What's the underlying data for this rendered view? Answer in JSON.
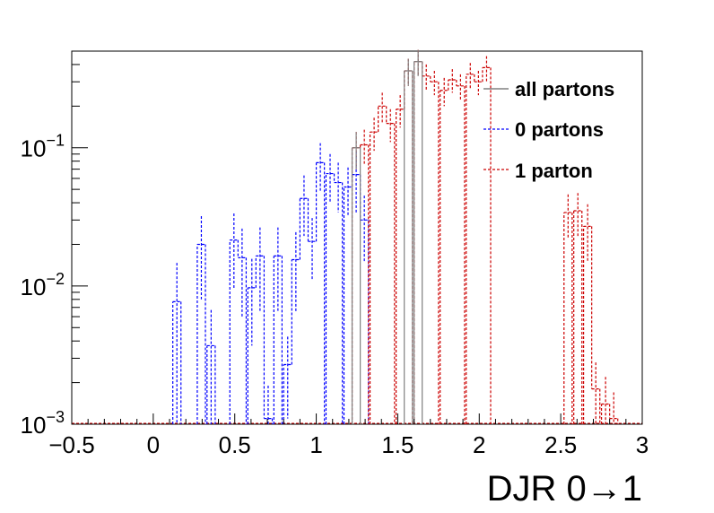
{
  "chart_data": {
    "type": "line",
    "subtype": "step-histogram",
    "xlabel": "DJR 0→1",
    "ylabel": "",
    "xlim": [
      -0.5,
      3.0
    ],
    "ylim": [
      0.001,
      0.5
    ],
    "yscale": "log",
    "x_ticks": [
      -0.5,
      0,
      0.5,
      1,
      1.5,
      2,
      2.5,
      3
    ],
    "x_tick_labels": [
      "−0.5",
      "0",
      "0.5",
      "1",
      "1.5",
      "2",
      "2.5",
      "3"
    ],
    "y_ticks": [
      0.001,
      0.01,
      0.1
    ],
    "y_tick_labels": [
      {
        "base": "10",
        "exp": "−3"
      },
      {
        "base": "10",
        "exp": "−2"
      },
      {
        "base": "10",
        "exp": "−1"
      }
    ],
    "bin_width": 0.05,
    "legend": {
      "placement": "top-right"
    },
    "grid": false,
    "series": [
      {
        "name": "0 partons",
        "color": "#0000ff",
        "dash": true,
        "bins": [
          {
            "x0": 0.12,
            "y": 0.0077,
            "err": 0.007
          },
          {
            "x0": 0.27,
            "y": 0.02,
            "err": 0.012
          },
          {
            "x0": 0.33,
            "y": 0.0037,
            "err": 0.003
          },
          {
            "x0": 0.47,
            "y": 0.0215,
            "err": 0.012
          },
          {
            "x0": 0.52,
            "y": 0.016,
            "err": 0.01
          },
          {
            "x0": 0.58,
            "y": 0.0097,
            "err": 0.006
          },
          {
            "x0": 0.63,
            "y": 0.0165,
            "err": 0.01
          },
          {
            "x0": 0.68,
            "y": 0.0011,
            "err": 0.0008
          },
          {
            "x0": 0.74,
            "y": 0.0165,
            "err": 0.01
          },
          {
            "x0": 0.8,
            "y": 0.0027,
            "err": 0.0016
          },
          {
            "x0": 0.85,
            "y": 0.0155,
            "err": 0.009
          },
          {
            "x0": 0.9,
            "y": 0.043,
            "err": 0.02
          },
          {
            "x0": 0.95,
            "y": 0.021,
            "err": 0.01
          },
          {
            "x0": 1.0,
            "y": 0.078,
            "err": 0.03
          },
          {
            "x0": 1.06,
            "y": 0.065,
            "err": 0.025
          },
          {
            "x0": 1.11,
            "y": 0.056,
            "err": 0.022
          },
          {
            "x0": 1.17,
            "y": 0.052,
            "err": 0.02
          },
          {
            "x0": 1.22,
            "y": 0.064,
            "err": 0.03
          },
          {
            "x0": 1.27,
            "y": 0.03,
            "err": 0.015
          }
        ]
      },
      {
        "name": "1 parton",
        "color": "#cc0000",
        "dash": true,
        "bins": [
          {
            "x0": 1.22,
            "y": 0.1,
            "err": 0.03
          },
          {
            "x0": 1.27,
            "y": 0.105,
            "err": 0.03
          },
          {
            "x0": 1.33,
            "y": 0.13,
            "err": 0.035
          },
          {
            "x0": 1.38,
            "y": 0.2,
            "err": 0.05
          },
          {
            "x0": 1.43,
            "y": 0.15,
            "err": 0.04
          },
          {
            "x0": 1.49,
            "y": 0.19,
            "err": 0.05
          },
          {
            "x0": 1.54,
            "y": 0.36,
            "err": 0.08
          },
          {
            "x0": 1.6,
            "y": 0.42,
            "err": 0.09
          },
          {
            "x0": 1.65,
            "y": 0.33,
            "err": 0.07
          },
          {
            "x0": 1.7,
            "y": 0.3,
            "err": 0.06
          },
          {
            "x0": 1.76,
            "y": 0.26,
            "err": 0.06
          },
          {
            "x0": 1.81,
            "y": 0.31,
            "err": 0.06
          },
          {
            "x0": 1.86,
            "y": 0.28,
            "err": 0.06
          },
          {
            "x0": 1.92,
            "y": 0.34,
            "err": 0.07
          },
          {
            "x0": 1.97,
            "y": 0.3,
            "err": 0.06
          },
          {
            "x0": 2.02,
            "y": 0.38,
            "err": 0.08
          },
          {
            "x0": 2.52,
            "y": 0.034,
            "err": 0.012
          },
          {
            "x0": 2.58,
            "y": 0.035,
            "err": 0.012
          },
          {
            "x0": 2.64,
            "y": 0.027,
            "err": 0.012
          },
          {
            "x0": 2.69,
            "y": 0.0018,
            "err": 0.001
          },
          {
            "x0": 2.75,
            "y": 0.0014,
            "err": 0.0008
          },
          {
            "x0": 2.8,
            "y": 0.0011,
            "err": 0.0006
          }
        ]
      },
      {
        "name": "all partons",
        "color": "#808080",
        "dash": false,
        "bins": [
          {
            "x0": 1.22,
            "y": 0.1,
            "err": 0.03
          },
          {
            "x0": 1.54,
            "y": 0.36,
            "err": 0.08
          },
          {
            "x0": 1.6,
            "y": 0.42,
            "err": 0.09
          }
        ]
      }
    ]
  }
}
